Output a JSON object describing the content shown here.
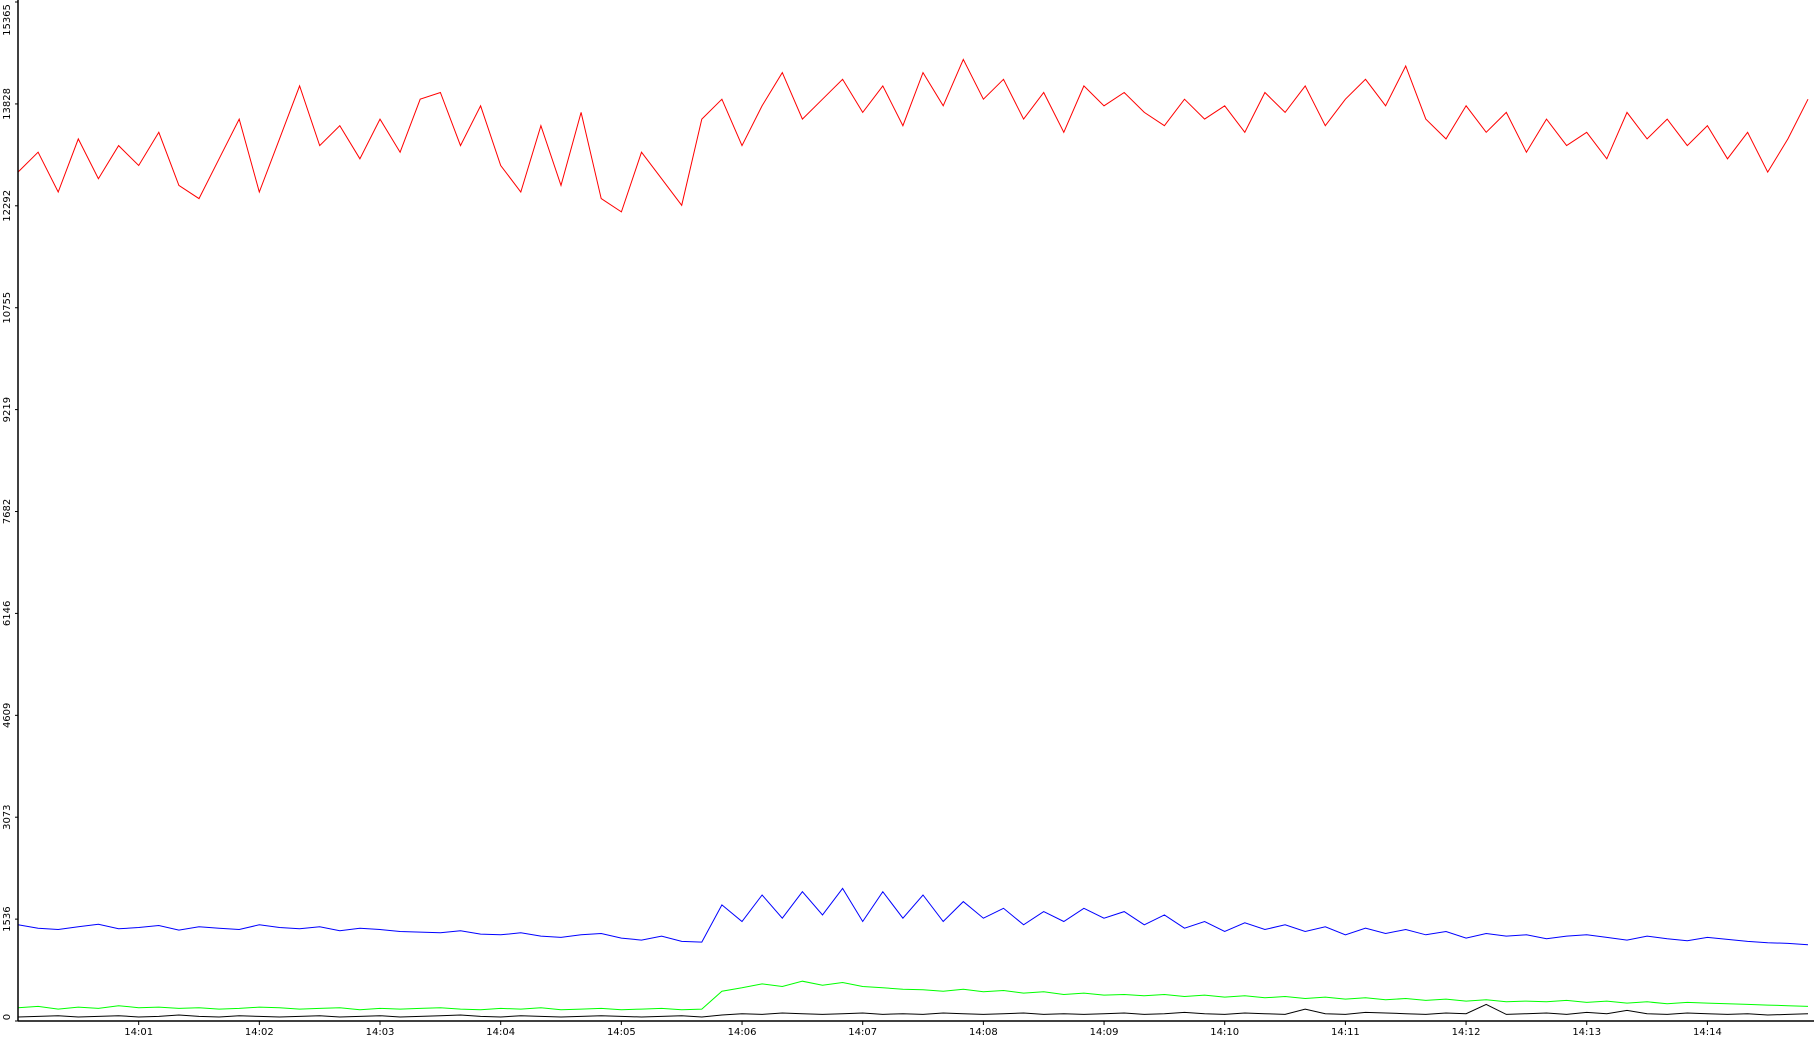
{
  "chart_data": {
    "type": "line",
    "xlim": [
      0,
      893
    ],
    "xticks": [
      {
        "value": 60,
        "label": "14:01"
      },
      {
        "value": 120,
        "label": "14:02"
      },
      {
        "value": 180,
        "label": "14:03"
      },
      {
        "value": 240,
        "label": "14:04"
      },
      {
        "value": 300,
        "label": "14:05"
      },
      {
        "value": 360,
        "label": "14:06"
      },
      {
        "value": 420,
        "label": "14:07"
      },
      {
        "value": 480,
        "label": "14:08"
      },
      {
        "value": 540,
        "label": "14:09"
      },
      {
        "value": 600,
        "label": "14:10"
      },
      {
        "value": 660,
        "label": "14:11"
      },
      {
        "value": 720,
        "label": "14:12"
      },
      {
        "value": 780,
        "label": "14:13"
      },
      {
        "value": 840,
        "label": "14:14"
      }
    ],
    "ylim": [
      0,
      15365
    ],
    "yticks": [
      0,
      1536,
      3073,
      4609,
      6146,
      7682,
      9219,
      10755,
      12292,
      13828,
      15365
    ],
    "x": [
      0,
      10,
      20,
      30,
      40,
      50,
      60,
      70,
      80,
      90,
      100,
      110,
      120,
      130,
      140,
      150,
      160,
      170,
      180,
      190,
      200,
      210,
      220,
      230,
      240,
      250,
      260,
      270,
      280,
      290,
      300,
      310,
      320,
      330,
      340,
      350,
      360,
      370,
      380,
      390,
      400,
      410,
      420,
      430,
      440,
      450,
      460,
      470,
      480,
      490,
      500,
      510,
      520,
      530,
      540,
      550,
      560,
      570,
      580,
      590,
      600,
      610,
      620,
      630,
      640,
      650,
      660,
      670,
      680,
      690,
      700,
      710,
      720,
      730,
      740,
      750,
      760,
      770,
      780,
      790,
      800,
      810,
      820,
      830,
      840,
      850,
      860,
      870,
      880,
      890
    ],
    "series": [
      {
        "color": "#ff0000",
        "values": [
          12800,
          13100,
          12500,
          13300,
          12700,
          13200,
          12900,
          13400,
          12600,
          12400,
          13000,
          13600,
          12500,
          13300,
          14100,
          13200,
          13500,
          13000,
          13600,
          13100,
          13900,
          14000,
          13200,
          13800,
          12900,
          12500,
          13500,
          12600,
          13700,
          12400,
          12200,
          13100,
          12700,
          12300,
          13600,
          13900,
          13200,
          13800,
          14300,
          13600,
          13900,
          14200,
          13700,
          14100,
          13500,
          14300,
          13800,
          14500,
          13900,
          14200,
          13600,
          14000,
          13400,
          14100,
          13800,
          14000,
          13700,
          13500,
          13900,
          13600,
          13800,
          13400,
          14000,
          13700,
          14100,
          13500,
          13900,
          14200,
          13800,
          14400,
          13600,
          13300,
          13800,
          13400,
          13700,
          13100,
          13600,
          13200,
          13400,
          13000,
          13700,
          13300,
          13600,
          13200,
          13500,
          13000,
          13400,
          12800,
          13300,
          13900
        ]
      },
      {
        "color": "#0000ff",
        "values": [
          1450,
          1400,
          1380,
          1420,
          1460,
          1390,
          1410,
          1440,
          1370,
          1420,
          1400,
          1380,
          1450,
          1410,
          1390,
          1420,
          1360,
          1400,
          1380,
          1350,
          1340,
          1330,
          1360,
          1310,
          1300,
          1330,
          1280,
          1260,
          1300,
          1320,
          1250,
          1220,
          1280,
          1200,
          1190,
          1750,
          1500,
          1900,
          1550,
          1950,
          1600,
          2000,
          1500,
          1950,
          1550,
          1900,
          1500,
          1800,
          1550,
          1700,
          1450,
          1650,
          1500,
          1700,
          1550,
          1650,
          1450,
          1600,
          1400,
          1500,
          1350,
          1480,
          1380,
          1450,
          1350,
          1420,
          1300,
          1400,
          1320,
          1380,
          1300,
          1350,
          1250,
          1320,
          1280,
          1300,
          1240,
          1280,
          1300,
          1260,
          1220,
          1280,
          1240,
          1210,
          1260,
          1230,
          1200,
          1180,
          1170,
          1150
        ]
      },
      {
        "color": "#00ff00",
        "values": [
          200,
          220,
          180,
          210,
          190,
          230,
          200,
          210,
          190,
          200,
          180,
          190,
          210,
          200,
          180,
          190,
          200,
          170,
          190,
          180,
          190,
          200,
          180,
          170,
          190,
          180,
          200,
          170,
          180,
          190,
          170,
          180,
          190,
          170,
          180,
          450,
          500,
          560,
          520,
          600,
          540,
          580,
          520,
          500,
          480,
          470,
          450,
          480,
          440,
          460,
          420,
          440,
          400,
          420,
          390,
          400,
          380,
          400,
          370,
          390,
          360,
          380,
          350,
          370,
          340,
          360,
          330,
          350,
          320,
          340,
          310,
          330,
          300,
          320,
          290,
          300,
          290,
          310,
          280,
          300,
          270,
          290,
          260,
          280,
          270,
          260,
          250,
          240,
          230,
          220
        ]
      },
      {
        "color": "#000000",
        "values": [
          60,
          70,
          80,
          60,
          70,
          80,
          60,
          70,
          90,
          70,
          60,
          80,
          70,
          60,
          70,
          80,
          60,
          70,
          80,
          60,
          70,
          80,
          90,
          70,
          60,
          80,
          70,
          60,
          70,
          80,
          70,
          60,
          70,
          80,
          60,
          90,
          110,
          100,
          120,
          110,
          100,
          110,
          120,
          100,
          110,
          100,
          120,
          110,
          100,
          110,
          120,
          100,
          110,
          100,
          110,
          120,
          100,
          110,
          130,
          110,
          100,
          120,
          110,
          100,
          180,
          110,
          100,
          130,
          120,
          110,
          100,
          120,
          110,
          250,
          100,
          110,
          120,
          100,
          130,
          110,
          160,
          110,
          100,
          120,
          110,
          100,
          110,
          90,
          100,
          110
        ]
      }
    ]
  }
}
